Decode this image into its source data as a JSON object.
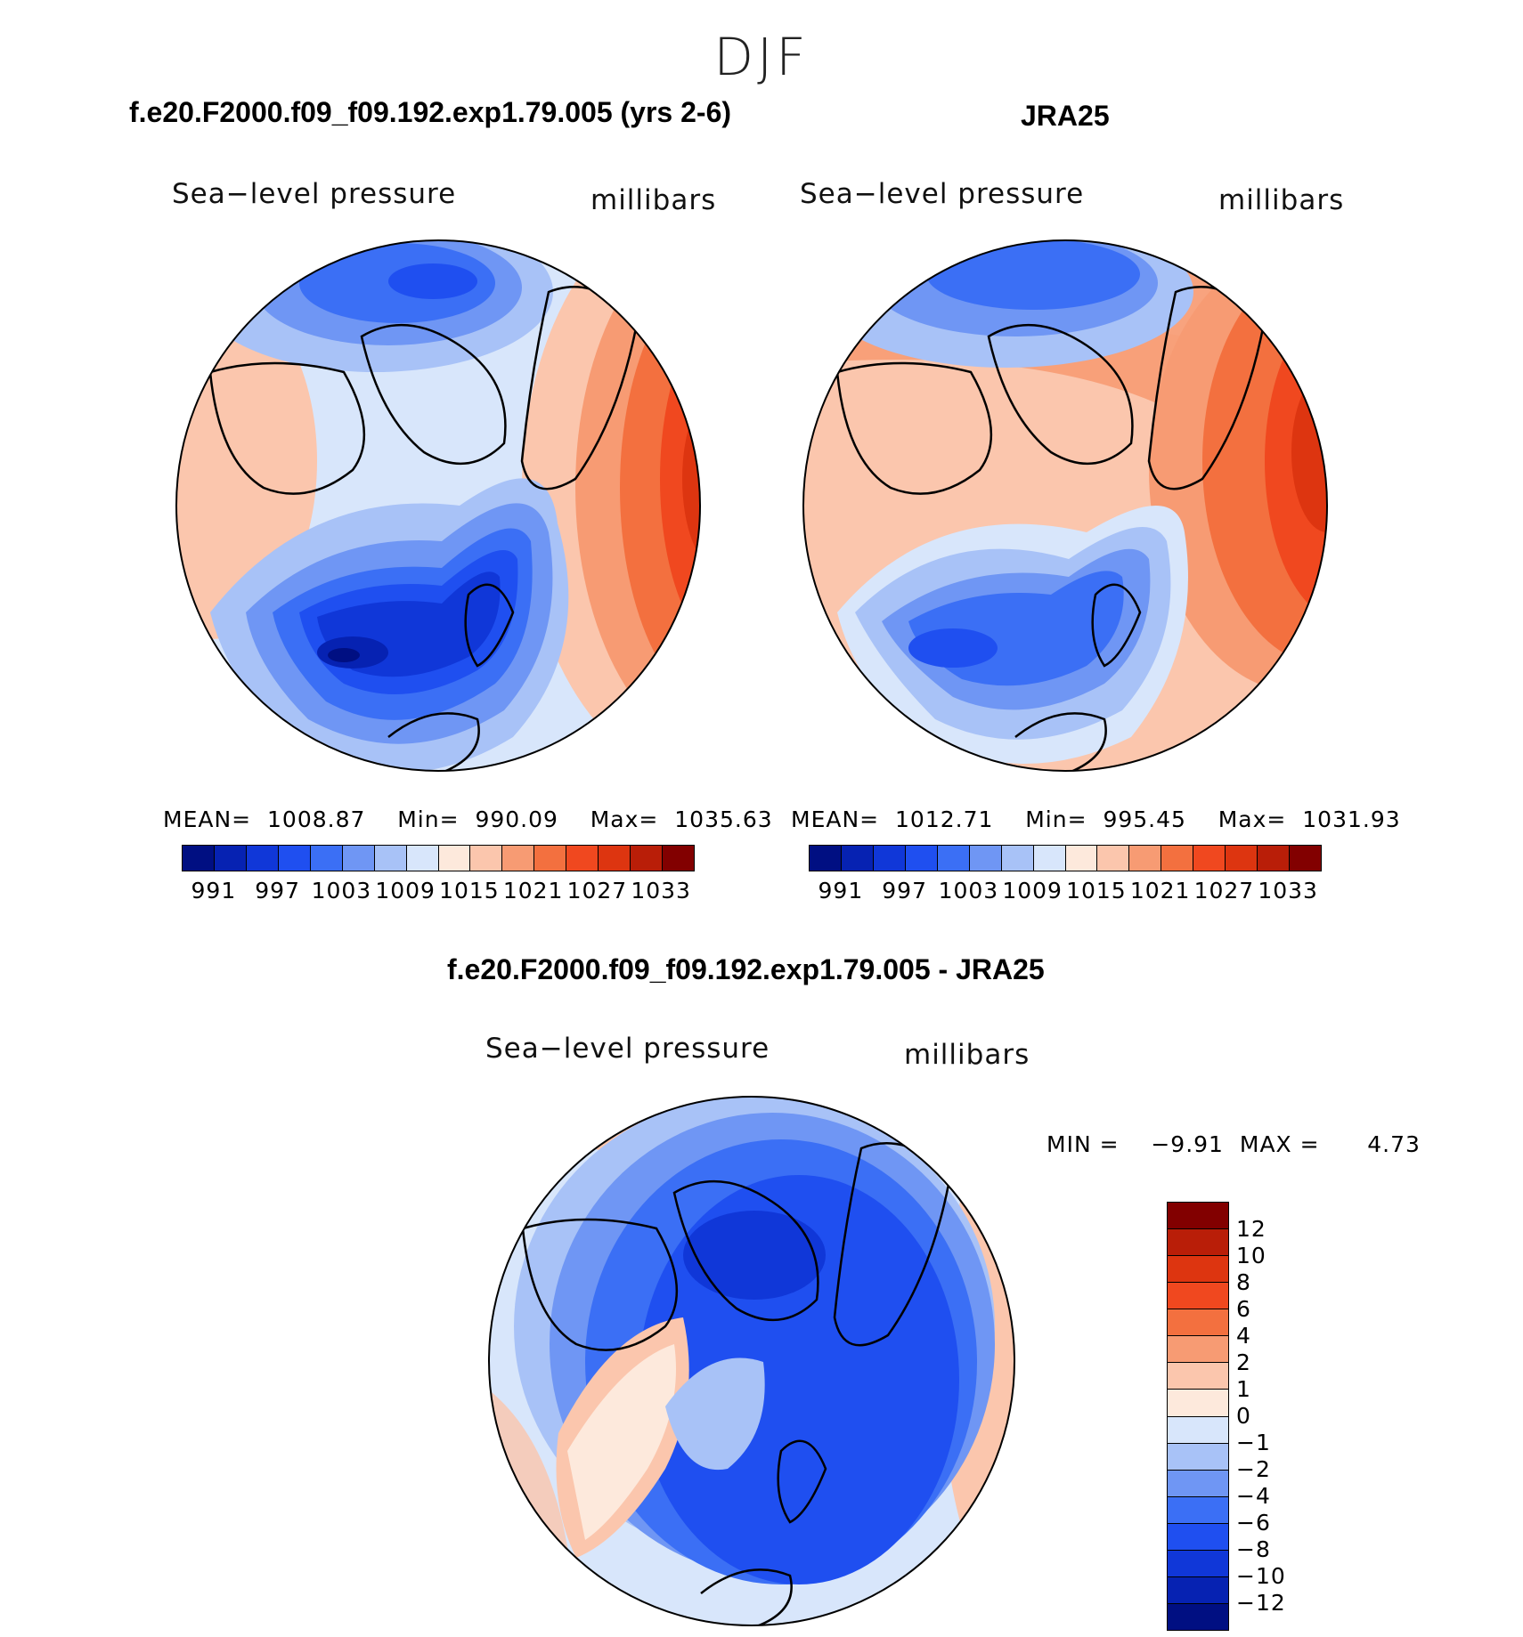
{
  "season": "DJF",
  "panels": [
    {
      "title": "f.e20.F2000.f09_f09.192.exp1.79.005 (yrs 2-6)",
      "variable": "Sea−level pressure",
      "units": "millibars",
      "stats": {
        "mean_label": "MEAN=",
        "mean": "1008.87",
        "min_label": "Min=",
        "min": "990.09",
        "max_label": "Max=",
        "max": "1035.63"
      },
      "colorbar_labels": [
        "991",
        "997",
        "1003",
        "1009",
        "1015",
        "1021",
        "1027",
        "1033"
      ]
    },
    {
      "title": "JRA25",
      "variable": "Sea−level pressure",
      "units": "millibars",
      "stats": {
        "mean_label": "MEAN=",
        "mean": "1012.71",
        "min_label": "Min=",
        "min": "995.45",
        "max_label": "Max=",
        "max": "1031.93"
      },
      "colorbar_labels": [
        "991",
        "997",
        "1003",
        "1009",
        "1015",
        "1021",
        "1027",
        "1033"
      ]
    }
  ],
  "diff": {
    "title": "f.e20.F2000.f09_f09.192.exp1.79.005 - JRA25",
    "variable": "Sea−level pressure",
    "units": "millibars",
    "min_label": "MIN =",
    "min": "−9.91",
    "max_label": "MAX =",
    "max": "4.73",
    "colorbar_labels": [
      "12",
      "10",
      "8",
      "6",
      "4",
      "2",
      "1",
      "0",
      "−1",
      "−2",
      "−4",
      "−6",
      "−8",
      "−10",
      "−12"
    ]
  },
  "colors": {
    "abs_scale": [
      "#000f82",
      "#0622b2",
      "#1037d8",
      "#1f4ff0",
      "#3b6ff5",
      "#6f96f4",
      "#a8c2f7",
      "#d8e6fb",
      "#fde9dc",
      "#fbc6ad",
      "#f79b73",
      "#f3703f",
      "#f0481f",
      "#dd3510",
      "#b91e08",
      "#820000"
    ],
    "diff_scale": [
      "#820000",
      "#b91e08",
      "#dd3510",
      "#f0481f",
      "#f3703f",
      "#f79b73",
      "#fbc6ad",
      "#fde9dc",
      "#d8e6fb",
      "#a8c2f7",
      "#6f96f4",
      "#3b6ff5",
      "#1f4ff0",
      "#1037d8",
      "#0622b2",
      "#000f82"
    ]
  }
}
